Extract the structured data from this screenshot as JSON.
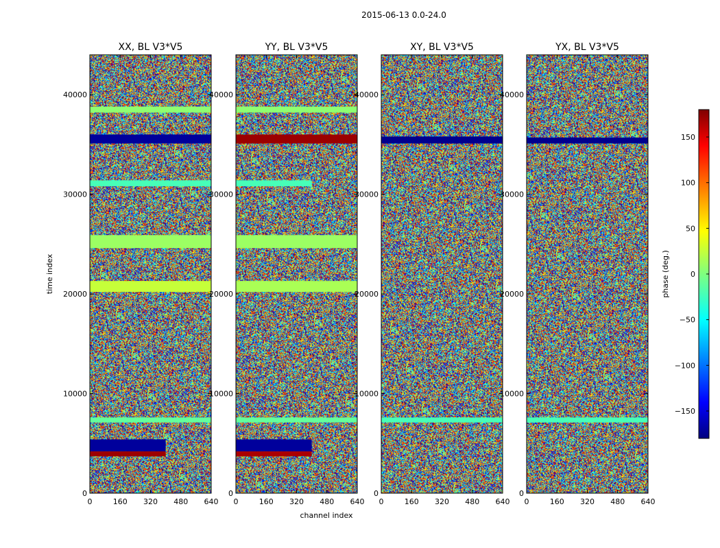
{
  "chart_data": {
    "type": "heatmap",
    "suptitle": "2015-06-13 0.0-24.0",
    "xlabel": "channel index",
    "ylabel": "time index",
    "xlim": [
      0,
      640
    ],
    "ylim": [
      0,
      44000
    ],
    "xticks": [
      "0",
      "160",
      "320",
      "480",
      "640"
    ],
    "yticks": [
      "0",
      "10000",
      "20000",
      "30000",
      "40000"
    ],
    "colormap": "jet",
    "colorbar": {
      "label": "phase (deg.)",
      "range": [
        -180,
        180
      ],
      "ticks": [
        "150",
        "100",
        "50",
        "0",
        "−50",
        "−100",
        "−150"
      ],
      "tick_values": [
        150,
        100,
        50,
        0,
        -50,
        -100,
        -150
      ]
    },
    "panels": [
      {
        "title": "XX, BL V3*V5",
        "uniform_bands": [
          {
            "t0": 38200,
            "t1": 38800,
            "phase": 5
          },
          {
            "t0": 35100,
            "t1": 36000,
            "phase": -170
          },
          {
            "t0": 30800,
            "t1": 31400,
            "phase": -20
          },
          {
            "t0": 24600,
            "t1": 25900,
            "phase": 10
          },
          {
            "t0": 20200,
            "t1": 21300,
            "phase": 25
          },
          {
            "t0": 7100,
            "t1": 7600,
            "phase": -10
          },
          {
            "t0": 4200,
            "t1": 5400,
            "phase": -170,
            "ch0": 0,
            "ch1": 400
          },
          {
            "t0": 3700,
            "t1": 4200,
            "phase": 170,
            "ch0": 0,
            "ch1": 400
          }
        ]
      },
      {
        "title": "YY, BL V3*V5",
        "uniform_bands": [
          {
            "t0": 38200,
            "t1": 38800,
            "phase": 5
          },
          {
            "t0": 35100,
            "t1": 36000,
            "phase": 170
          },
          {
            "t0": 30800,
            "t1": 31400,
            "phase": -20,
            "ch0": 0,
            "ch1": 400
          },
          {
            "t0": 24600,
            "t1": 25900,
            "phase": 10
          },
          {
            "t0": 20200,
            "t1": 21300,
            "phase": 15
          },
          {
            "t0": 7100,
            "t1": 7600,
            "phase": -10
          },
          {
            "t0": 4200,
            "t1": 5400,
            "phase": -170,
            "ch0": 0,
            "ch1": 400
          },
          {
            "t0": 3700,
            "t1": 4200,
            "phase": 165,
            "ch0": 0,
            "ch1": 400
          }
        ]
      },
      {
        "title": "XY, BL V3*V5",
        "uniform_bands": [
          {
            "t0": 35100,
            "t1": 35800,
            "phase": -175
          },
          {
            "t0": 7100,
            "t1": 7600,
            "phase": -20
          }
        ]
      },
      {
        "title": "YX, BL V3*V5",
        "uniform_bands": [
          {
            "t0": 35100,
            "t1": 35700,
            "phase": -175
          },
          {
            "t0": 7100,
            "t1": 7600,
            "phase": -20
          }
        ]
      }
    ]
  }
}
